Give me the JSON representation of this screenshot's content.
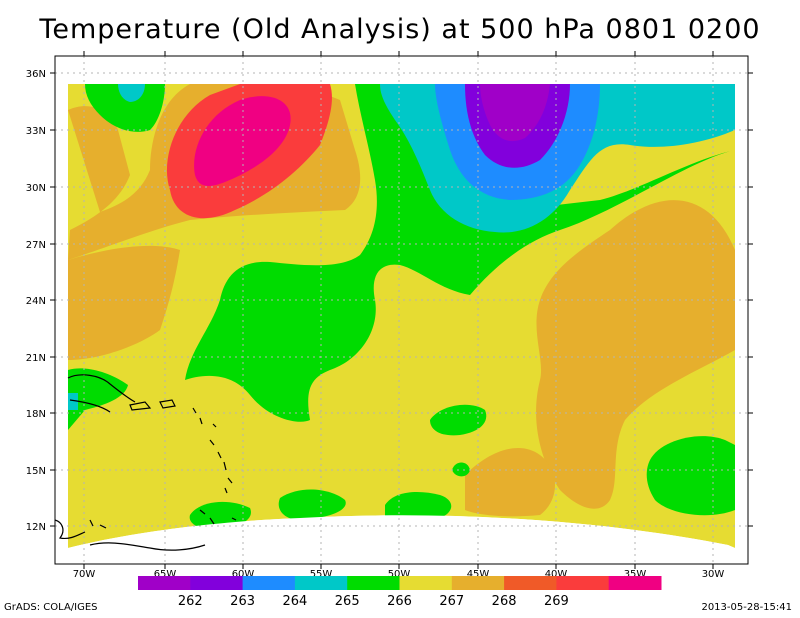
{
  "title": "Temperature (Old Analysis) at 500 hPa 0801 0200",
  "footer": {
    "left": "GrADS: COLA/IGES",
    "right": "2013-05-28-15:41"
  },
  "axes": {
    "lat_labels": [
      "36N",
      "33N",
      "30N",
      "27N",
      "24N",
      "21N",
      "18N",
      "15N",
      "12N"
    ],
    "lon_labels": [
      "70W",
      "65W",
      "60W",
      "55W",
      "50W",
      "45W",
      "40W",
      "35W",
      "30W"
    ]
  },
  "legend": {
    "colors": [
      "#a000c8",
      "#8200dc",
      "#1e8cff",
      "#00c8c8",
      "#00dc00",
      "#e6dc32",
      "#e6af2d",
      "#f05a28",
      "#fa3c3c",
      "#f00082"
    ],
    "labels": [
      "262",
      "263",
      "264",
      "265",
      "266",
      "267",
      "268",
      "269"
    ]
  },
  "fill_colors": {
    "t266": "#00dc00",
    "t267": "#e6dc32",
    "t268": "#e6af2d",
    "t269": "#fa3c3c",
    "t269_core": "#f00082",
    "t265": "#00c8c8",
    "t264": "#1e8cff",
    "t263": "#8200dc",
    "t262": "#a000c8"
  }
}
